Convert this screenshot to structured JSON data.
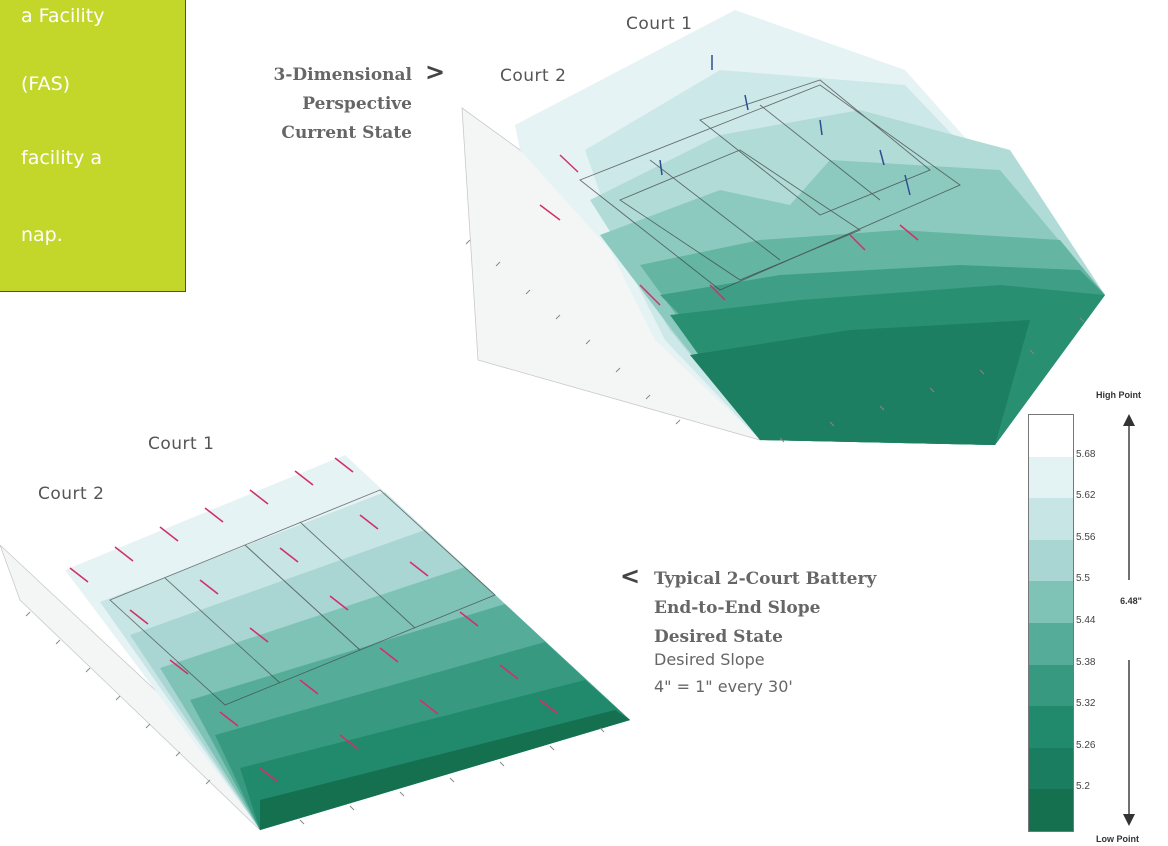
{
  "callout": {
    "lines": [
      "a Facility",
      "(FAS)",
      "facility a",
      "nap."
    ],
    "color": "#c3d72b"
  },
  "top_plot": {
    "court1_label": "Court 1",
    "court2_label": "Court 2",
    "caption_marker": ">",
    "caption_lines": [
      "3-Dimensional",
      "Perspective",
      "Current State"
    ]
  },
  "bottom_plot": {
    "court1_label": "Court 1",
    "court2_label": "Court 2",
    "caption_marker": "<",
    "caption_lines": [
      "Typical 2-Court Battery",
      "End-to-End Slope",
      "Desired State"
    ],
    "slope_title": "Desired Slope",
    "slope_value": "4\" = 1\" every 30'"
  },
  "legend": {
    "high_label": "High Point",
    "low_label": "Low Point",
    "range_label": "6.48\"",
    "levels": [
      "5.68",
      "5.62",
      "5.56",
      "5.5",
      "5.44",
      "5.38",
      "5.32",
      "5.26",
      "5.2"
    ],
    "band_colors": [
      "#ffffff",
      "#e3f2f3",
      "#c7e5e5",
      "#a9d6d2",
      "#7fc2b6",
      "#55ad99",
      "#379a80",
      "#21896c",
      "#1a7d60",
      "#15704f"
    ],
    "arrow_color": "#d1306a"
  }
}
